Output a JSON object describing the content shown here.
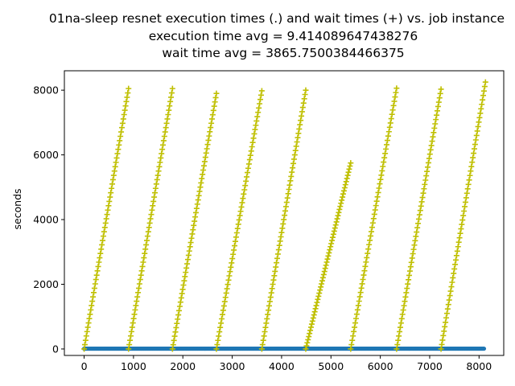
{
  "chart_data": {
    "type": "scatter",
    "title": "01na-sleep resnet execution times (.) and wait times (+) vs. job instance",
    "subtitle_lines": [
      "execution time avg = 9.414089647438276",
      "wait time avg = 3865.7500384466375"
    ],
    "xlabel": "",
    "ylabel": "seconds",
    "xlim": [
      -400,
      8500
    ],
    "ylim": [
      -200,
      8600
    ],
    "xticks": [
      0,
      1000,
      2000,
      3000,
      4000,
      5000,
      6000,
      7000,
      8000
    ],
    "yticks": [
      0,
      2000,
      4000,
      6000,
      8000
    ],
    "grid": false,
    "series": [
      {
        "marker": "point",
        "color": "#1f77b4",
        "x_range": [
          0,
          8100
        ],
        "y_avg": 9.414089647438276
      },
      {
        "marker": "plus",
        "color": "#bfbf00",
        "segments": [
          {
            "x_start": 0,
            "x_end": 900,
            "y_start": 0,
            "y_end": 8050
          },
          {
            "x_start": 900,
            "x_end": 1790,
            "y_start": 0,
            "y_end": 8050
          },
          {
            "x_start": 1790,
            "x_end": 2680,
            "y_start": 0,
            "y_end": 7900
          },
          {
            "x_start": 2680,
            "x_end": 3600,
            "y_start": 0,
            "y_end": 7980
          },
          {
            "x_start": 3600,
            "x_end": 4490,
            "y_start": 0,
            "y_end": 8000
          },
          {
            "x_start": 4490,
            "x_end": 5400,
            "y_start": 0,
            "y_end": 5750
          },
          {
            "x_start": 5400,
            "x_end": 6330,
            "y_start": 0,
            "y_end": 8060
          },
          {
            "x_start": 6330,
            "x_end": 7230,
            "y_start": 0,
            "y_end": 8030
          },
          {
            "x_start": 7230,
            "x_end": 8130,
            "y_start": 0,
            "y_end": 8250
          }
        ]
      }
    ]
  }
}
